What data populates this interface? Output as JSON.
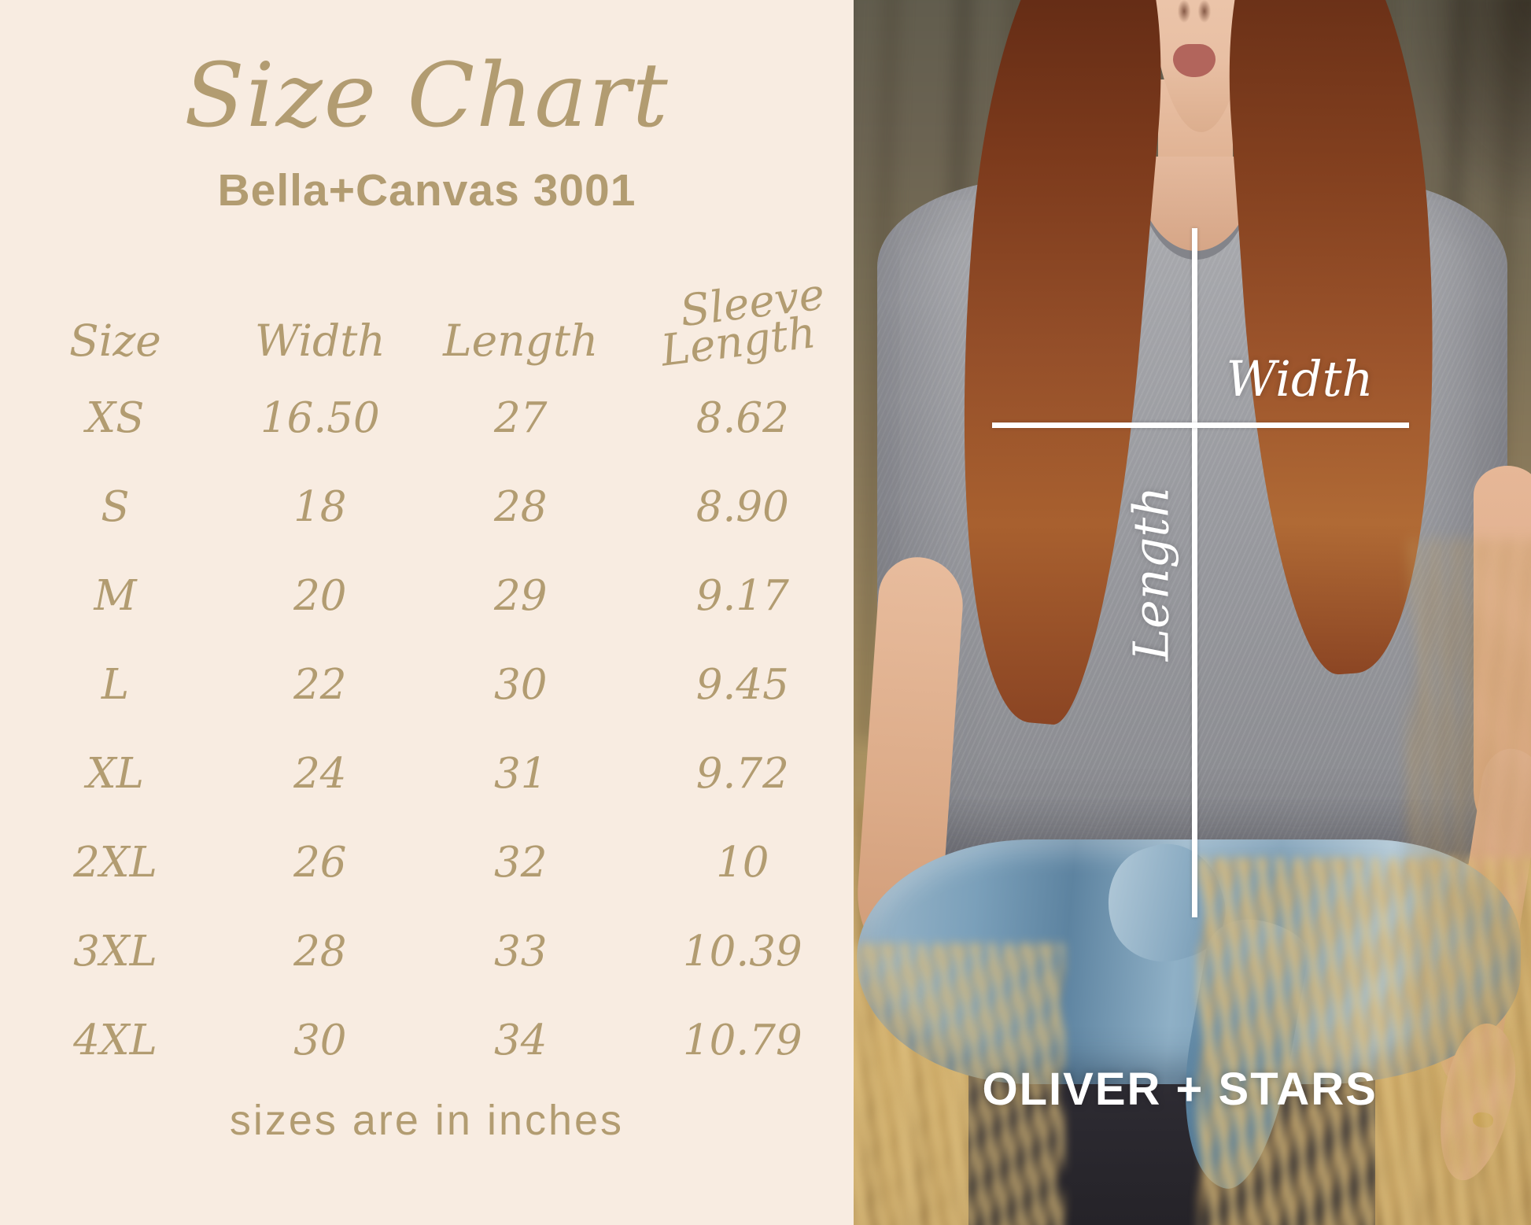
{
  "panel": {
    "title": "Size Chart",
    "subtitle": "Bella+Canvas 3001",
    "footnote": "sizes are in inches"
  },
  "chart_data": {
    "type": "table",
    "title": "Size Chart",
    "subtitle": "Bella+Canvas 3001",
    "units": "inches",
    "columns": [
      "Size",
      "Width",
      "Length",
      "Sleeve Length"
    ],
    "rows": [
      {
        "size": "XS",
        "width": "16.50",
        "length": "27",
        "sleeve_length": "8.62"
      },
      {
        "size": "S",
        "width": "18",
        "length": "28",
        "sleeve_length": "8.90"
      },
      {
        "size": "M",
        "width": "20",
        "length": "29",
        "sleeve_length": "9.17"
      },
      {
        "size": "L",
        "width": "22",
        "length": "30",
        "sleeve_length": "9.45"
      },
      {
        "size": "XL",
        "width": "24",
        "length": "31",
        "sleeve_length": "9.72"
      },
      {
        "size": "2XL",
        "width": "26",
        "length": "32",
        "sleeve_length": "10"
      },
      {
        "size": "3XL",
        "width": "28",
        "length": "33",
        "sleeve_length": "10.39"
      },
      {
        "size": "4XL",
        "width": "30",
        "length": "34",
        "sleeve_length": "10.79"
      }
    ]
  },
  "photo": {
    "overlay": {
      "width_label": "Width",
      "length_label": "Length"
    },
    "brand": "OLIVER + STARS"
  },
  "colors": {
    "background_cream": "#f8ece1",
    "text_gold": "#b29c71",
    "overlay_white": "#ffffff",
    "tshirt_gray": "#9b9ca0",
    "denim_blue": "#7e9db5"
  }
}
